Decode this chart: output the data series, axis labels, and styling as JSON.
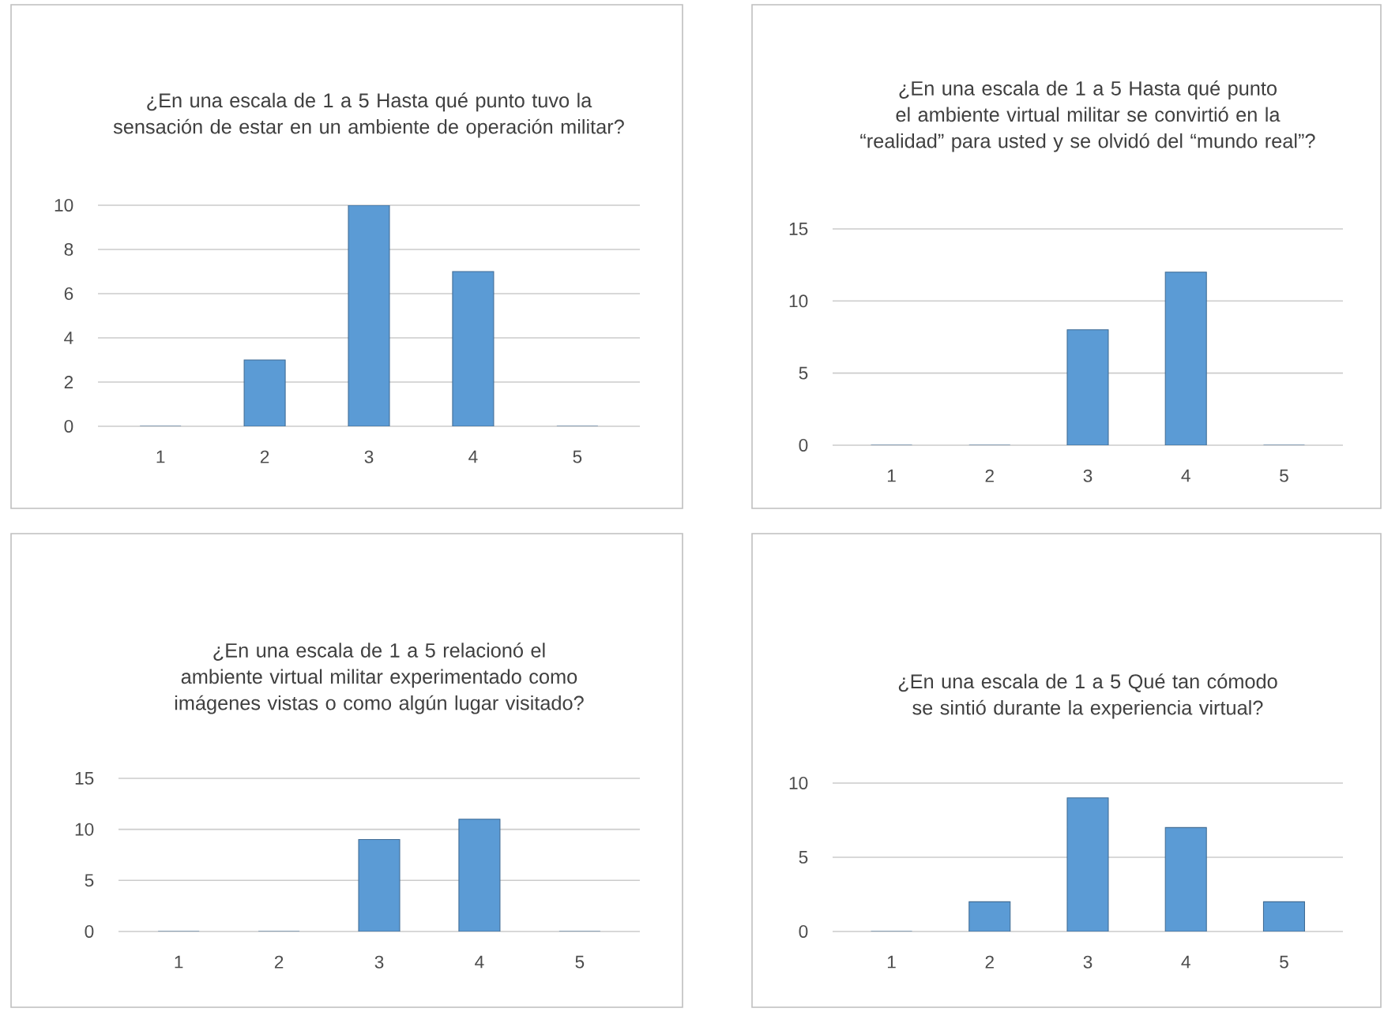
{
  "chart_data": [
    {
      "type": "bar",
      "title": "¿En una escala de 1 a 5 Hasta qué punto tuvo la sensación de estar en un ambiente de operación militar?",
      "categories": [
        "1",
        "2",
        "3",
        "4",
        "5"
      ],
      "values": [
        0,
        3,
        10,
        7,
        0
      ],
      "color": "#5b9bd5",
      "ylim": [
        0,
        10
      ],
      "yticks": [
        0,
        2,
        4,
        6,
        8,
        10
      ],
      "grid": "y"
    },
    {
      "type": "bar",
      "title": "¿En una escala de 1 a 5 Hasta qué punto el ambiente virtual militar se convirtió en la “realidad” para usted y se olvidó del “mundo real”?",
      "categories": [
        "1",
        "2",
        "3",
        "4",
        "5"
      ],
      "values": [
        0,
        0,
        8,
        12,
        0
      ],
      "color": "#5b9bd5",
      "ylim": [
        0,
        15
      ],
      "yticks": [
        0,
        5,
        10,
        15
      ],
      "grid": "y"
    },
    {
      "type": "bar",
      "title": "¿En una escala de 1 a 5 relacionó el ambiente virtual militar experimentado como imágenes vistas o como algún lugar visitado?",
      "categories": [
        "1",
        "2",
        "3",
        "4",
        "5"
      ],
      "values": [
        0,
        0,
        9,
        11,
        0
      ],
      "color": "#5b9bd5",
      "ylim": [
        0,
        15
      ],
      "yticks": [
        0,
        5,
        10,
        15
      ],
      "grid": "y"
    },
    {
      "type": "bar",
      "title": "¿En una escala de 1 a 5 Qué tan cómodo se sintió durante la experiencia virtual?",
      "categories": [
        "1",
        "2",
        "3",
        "4",
        "5"
      ],
      "values": [
        0,
        2,
        9,
        7,
        2
      ],
      "color": "#5b9bd5",
      "ylim": [
        0,
        10
      ],
      "yticks": [
        0,
        5,
        10
      ],
      "grid": "y"
    }
  ]
}
